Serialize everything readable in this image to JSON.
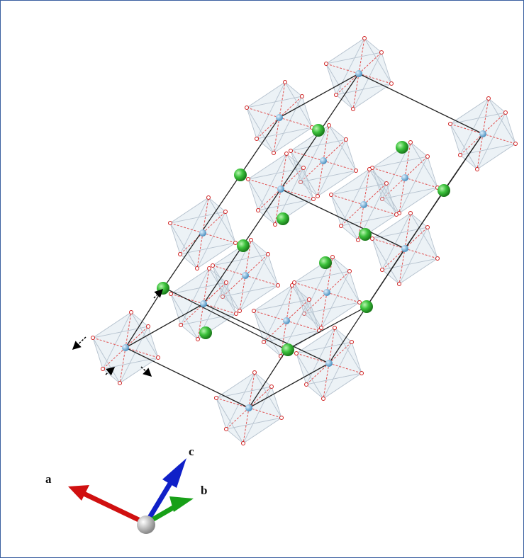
{
  "axis_labels": {
    "a": "a",
    "c": "c",
    "b": "b"
  }
}
